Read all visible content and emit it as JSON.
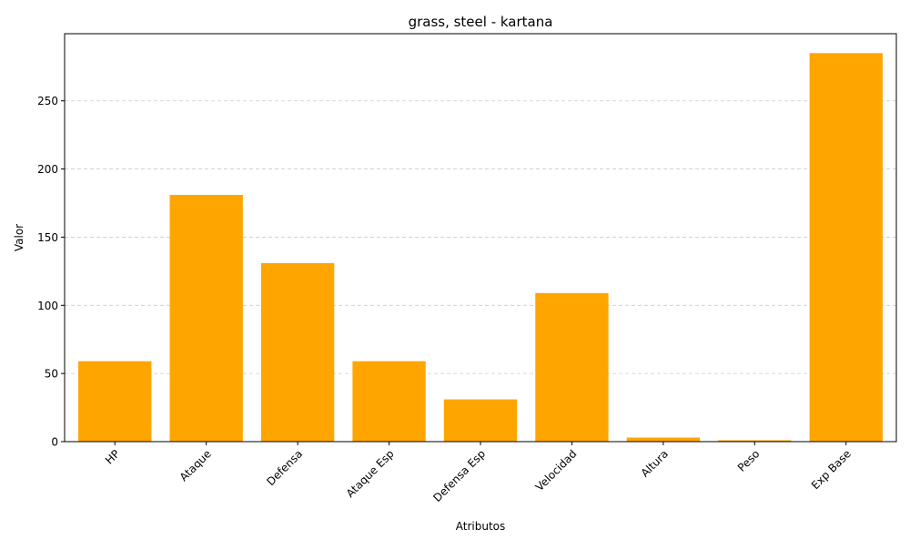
{
  "chart_data": {
    "type": "bar",
    "title": "grass, steel - kartana",
    "xlabel": "Atributos",
    "ylabel": "Valor",
    "categories": [
      "HP",
      "Ataque",
      "Defensa",
      "Ataque Esp",
      "Defensa Esp",
      "Velocidad",
      "Altura",
      "Peso",
      "Exp Base"
    ],
    "values": [
      59,
      181,
      131,
      59,
      31,
      109,
      3,
      1,
      285
    ],
    "ylim": [
      0,
      299.25
    ],
    "yticks": [
      0,
      50,
      100,
      150,
      200,
      250
    ],
    "bar_color": "#ffa500",
    "grid": "horizontal dashed",
    "legend": "none"
  }
}
